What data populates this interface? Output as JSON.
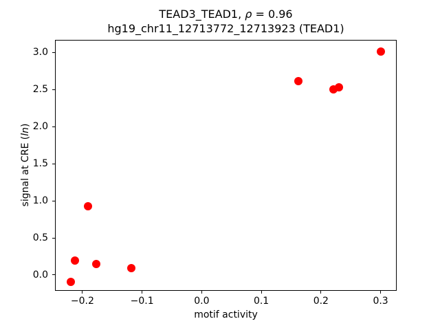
{
  "header": {
    "title_line1_prefix": "TEAD3_TEAD1, ",
    "title_line1_rho": "ρ",
    "title_line1_suffix": " = 0.96",
    "title_line2": "hg19_chr11_12713772_12713923 (TEAD1)"
  },
  "axes": {
    "xlabel": "motif activity",
    "ylabel_prefix": "signal at CRE (",
    "ylabel_italic": "ln",
    "ylabel_suffix": ")"
  },
  "chart_data": {
    "type": "scatter",
    "title": "TEAD3_TEAD1, ρ = 0.96\nhg19_chr11_12713772_12713923 (TEAD1)",
    "xlabel": "motif activity",
    "ylabel": "signal at CRE (ln)",
    "marker_color": "#ff0000",
    "marker_diameter_px": 12,
    "grid": false,
    "legend": null,
    "xlim": [
      -0.246,
      0.327
    ],
    "ylim": [
      -0.213,
      3.167
    ],
    "xticks": [
      -0.2,
      -0.1,
      0.0,
      0.1,
      0.2,
      0.3
    ],
    "xtick_labels": [
      "−0.2",
      "−0.1",
      "0.0",
      "0.1",
      "0.2",
      "0.3"
    ],
    "yticks": [
      0.0,
      0.5,
      1.0,
      1.5,
      2.0,
      2.5,
      3.0
    ],
    "ytick_labels": [
      "0.0",
      "0.5",
      "1.0",
      "1.5",
      "2.0",
      "2.5",
      "3.0"
    ],
    "points": [
      {
        "x": -0.219,
        "y": -0.09
      },
      {
        "x": -0.212,
        "y": 0.19
      },
      {
        "x": -0.191,
        "y": 0.93
      },
      {
        "x": -0.177,
        "y": 0.15
      },
      {
        "x": -0.118,
        "y": 0.09
      },
      {
        "x": 0.162,
        "y": 2.61
      },
      {
        "x": 0.221,
        "y": 2.5
      },
      {
        "x": 0.23,
        "y": 2.53
      },
      {
        "x": 0.3,
        "y": 3.01
      }
    ]
  }
}
